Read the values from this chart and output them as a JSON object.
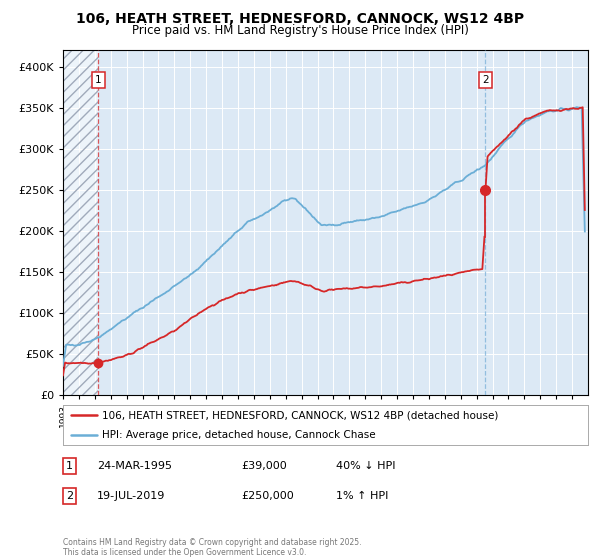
{
  "title": "106, HEATH STREET, HEDNESFORD, CANNOCK, WS12 4BP",
  "subtitle": "Price paid vs. HM Land Registry's House Price Index (HPI)",
  "legend_line1": "106, HEATH STREET, HEDNESFORD, CANNOCK, WS12 4BP (detached house)",
  "legend_line2": "HPI: Average price, detached house, Cannock Chase",
  "annotation1_date": "24-MAR-1995",
  "annotation1_price": "£39,000",
  "annotation1_hpi": "40% ↓ HPI",
  "annotation2_date": "19-JUL-2019",
  "annotation2_price": "£250,000",
  "annotation2_hpi": "1% ↑ HPI",
  "copyright": "Contains HM Land Registry data © Crown copyright and database right 2025.\nThis data is licensed under the Open Government Licence v3.0.",
  "sale1_year": 1995.22,
  "sale1_price": 39000,
  "sale2_year": 2019.55,
  "sale2_price": 250000,
  "hpi_color": "#6baed6",
  "price_color": "#d62728",
  "plot_bg": "#dce9f5",
  "ylim_max": 420000,
  "xmin": 1993,
  "xmax": 2026
}
